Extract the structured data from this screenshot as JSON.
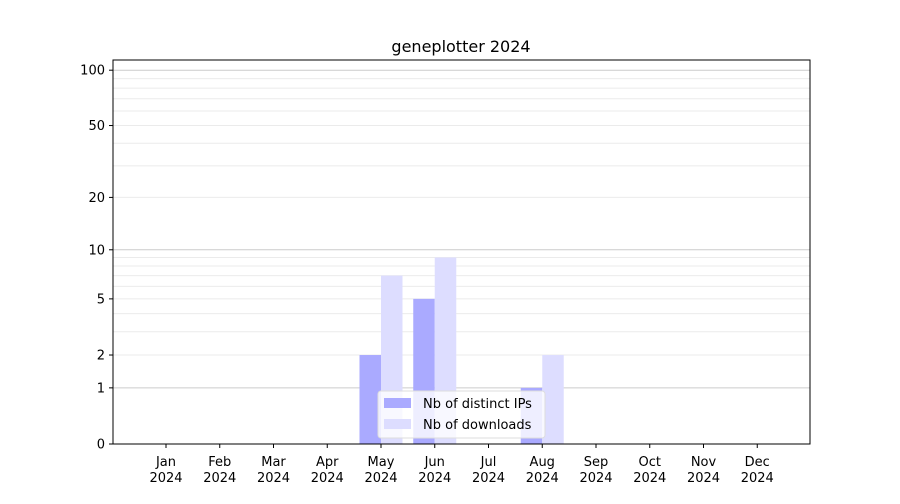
{
  "chart_data": {
    "type": "bar",
    "title": "geneplotter 2024",
    "xlabel": "",
    "ylabel": "",
    "y_scale": "log(1+y)",
    "ylim": [
      0,
      113
    ],
    "yticks": [
      0,
      1,
      2,
      5,
      10,
      20,
      50,
      100
    ],
    "grid": true,
    "legend_placement": "bottom-center",
    "categories": [
      "Jan\n2024",
      "Feb\n2024",
      "Mar\n2024",
      "Apr\n2024",
      "May\n2024",
      "Jun\n2024",
      "Jul\n2024",
      "Aug\n2024",
      "Sep\n2024",
      "Oct\n2024",
      "Nov\n2024",
      "Dec\n2024"
    ],
    "series": [
      {
        "name": "Nb of distinct IPs",
        "color": "#aaaaff",
        "values": [
          0,
          0,
          0,
          0,
          2,
          5,
          0,
          1,
          0,
          0,
          0,
          0
        ]
      },
      {
        "name": "Nb of downloads",
        "color": "#ddddff",
        "values": [
          0,
          0,
          0,
          0,
          7,
          9,
          0,
          2,
          0,
          0,
          0,
          0
        ]
      }
    ]
  }
}
